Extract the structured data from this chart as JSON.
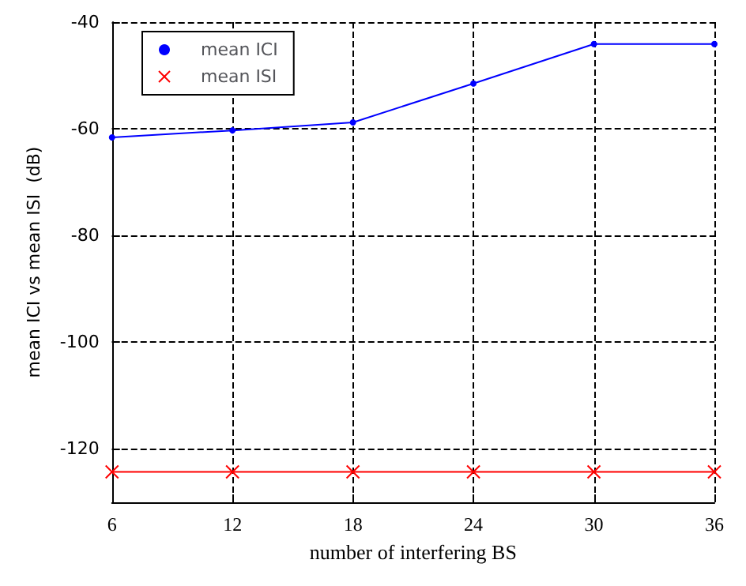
{
  "chart_data": {
    "type": "line",
    "xlabel": "number of interfering BS",
    "ylabel": "mean ICI vs mean ISI  (dB)",
    "x": [
      6,
      12,
      18,
      24,
      30,
      36
    ],
    "xlim": [
      6,
      36
    ],
    "xticks": [
      6,
      12,
      18,
      24,
      30,
      36
    ],
    "ylim": [
      -130,
      -40
    ],
    "yticks": [
      -120,
      -100,
      -80,
      -60,
      -40
    ],
    "series": [
      {
        "name": "mean ICI",
        "color": "#0000ff",
        "marker": "circle",
        "values": [
          -61.6,
          -60.3,
          -58.8,
          -51.5,
          -44.1,
          -44.1
        ]
      },
      {
        "name": "mean ISI",
        "color": "#ff0000",
        "marker": "cross",
        "values": [
          -124.3,
          -124.3,
          -124.3,
          -124.3,
          -124.3,
          -124.3
        ]
      }
    ],
    "grid": true,
    "legend": "top left",
    "line_style": "solid"
  }
}
